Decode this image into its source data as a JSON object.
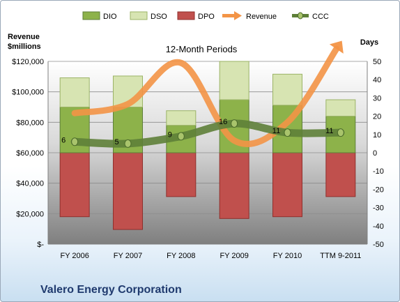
{
  "chart_data": {
    "type": "bar",
    "subtitle": "12-Month Periods",
    "categories": [
      "FY 2006",
      "FY 2007",
      "FY 2008",
      "FY 2009",
      "FY 2010",
      "TTM 9-2011"
    ],
    "y_left": {
      "label_line1": "Revenue",
      "label_line2": "$millions",
      "lim": [
        0,
        120000
      ],
      "ticks": [
        0,
        20000,
        40000,
        60000,
        80000,
        100000,
        120000
      ],
      "tick_labels": [
        "$-",
        "$20,000",
        "$40,000",
        "$60,000",
        "$80,000",
        "$100,000",
        "$120,000"
      ]
    },
    "y_right": {
      "label": "Days",
      "lim": [
        -50,
        50
      ],
      "ticks": [
        -50,
        -40,
        -30,
        -20,
        -10,
        0,
        10,
        20,
        30,
        40,
        50
      ],
      "tick_labels": [
        "-50",
        "-40",
        "-30",
        "-20",
        "-10",
        "0",
        "10",
        "20",
        "30",
        "40",
        "50"
      ]
    },
    "series": [
      {
        "name": "DIO",
        "axis": "right",
        "kind": "stacked-bar",
        "values": [
          25,
          25,
          15,
          29,
          26,
          20
        ],
        "color": "#8db24a"
      },
      {
        "name": "DSO",
        "axis": "right",
        "kind": "stacked-bar",
        "values": [
          16,
          17,
          8,
          21,
          17,
          9
        ],
        "color": "#d7e4b2"
      },
      {
        "name": "DPO",
        "axis": "right",
        "kind": "negative-bar",
        "values": [
          -35,
          -42,
          -24,
          -36,
          -35,
          -24
        ],
        "color": "#c0504d"
      },
      {
        "name": "Revenue",
        "axis": "left",
        "kind": "line",
        "values": [
          86000,
          92000,
          119000,
          68000,
          80000,
          130000
        ],
        "color": "#f39446"
      },
      {
        "name": "CCC",
        "axis": "right",
        "kind": "line",
        "values": [
          6,
          5,
          9,
          16,
          11,
          11
        ],
        "color": "#5e7f38"
      }
    ],
    "data_labels": [
      "6",
      "5",
      "9",
      "16",
      "11",
      "11"
    ],
    "legend_position": "top",
    "grid": true
  },
  "footer": {
    "company": "Valero Energy Corporation"
  }
}
